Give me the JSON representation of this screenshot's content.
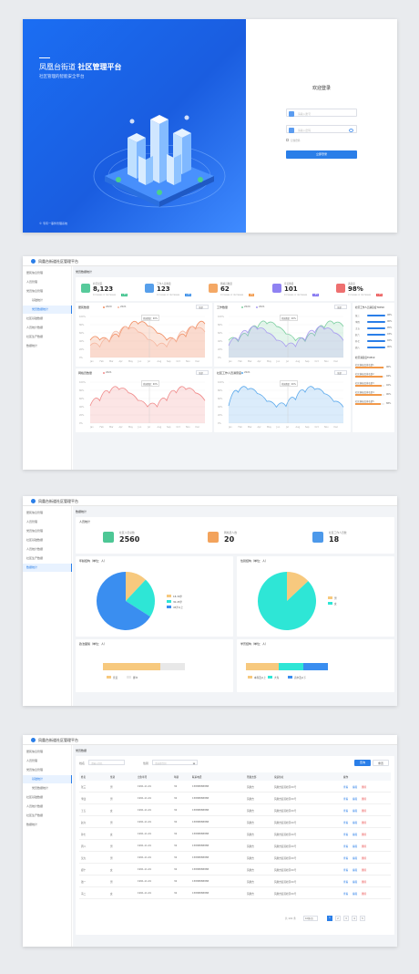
{
  "login": {
    "title_main": "凤凰台街道",
    "title_bold": "社区管理平台",
    "subtitle": "社区管理的智能安全平台",
    "footer": "© 专有一事件管理系统",
    "form_title": "欢迎登录",
    "username_placeholder": "请输入账号",
    "password_placeholder": "请输入密码",
    "remember_label": "记住密码",
    "submit_label": "立即登录"
  },
  "app_title": "凤凰台街道社区管理平台",
  "sidebar": {
    "items": [
      {
        "label": "居民信息管理"
      },
      {
        "label": "人员管理"
      },
      {
        "label": "党员信息管理"
      },
      {
        "label": "基础统计"
      },
      {
        "label": "党员数据统计"
      },
      {
        "label": "社区基础数据"
      },
      {
        "label": "人员统计数据"
      },
      {
        "label": "社区生产数据"
      },
      {
        "label": "数据统计"
      }
    ]
  },
  "dashboard": {
    "breadcrumb": "党员数据统计",
    "stats": [
      {
        "label": "社区居民",
        "value": "8,123",
        "sub": "Increases or decreases",
        "change": "+5%",
        "color": "#3ac18a"
      },
      {
        "label": "工作人员数量",
        "value": "123",
        "sub": "Increases or decreases",
        "change": "+2%",
        "color": "#3a8ee8"
      },
      {
        "label": "网格员数量",
        "value": "62",
        "sub": "Increases or decreases",
        "change": "-1%",
        "color": "#f2994a"
      },
      {
        "label": "党员数量",
        "value": "101",
        "sub": "Increases or decreases",
        "change": "+8%",
        "color": "#7b6cf0"
      },
      {
        "label": "满意度",
        "value": "98%",
        "sub": "Increases or decreases",
        "change": "+1%",
        "color": "#eb5757"
      }
    ],
    "charts": [
      {
        "title": "居民数量",
        "legend": [
          "2020",
          "2021"
        ],
        "select": "全部",
        "tooltip": "党员数量：90%",
        "colors": [
          "#f08a5d",
          "#f5b7a0"
        ]
      },
      {
        "title": "工作数量",
        "legend": [
          "2020",
          "2021"
        ],
        "select": "全部",
        "tooltip": "党员数量：90%",
        "colors": [
          "#7fd0a2",
          "#a99cf0"
        ]
      },
      {
        "title": "网格员数量",
        "legend": [
          "2021"
        ],
        "select": "全部",
        "tooltip": "党员数量：90%",
        "colors": [
          "#f08a8a"
        ]
      },
      {
        "title": "社区工作人员满意度",
        "legend": [
          "2021"
        ],
        "select": "全部",
        "tooltip": "党员数量：90%",
        "colors": [
          "#5aa9ec"
        ]
      }
    ],
    "months": [
      "Jan",
      "Feb",
      "Mar",
      "Apr",
      "May",
      "Jun",
      "Jul",
      "Aug",
      "Sep",
      "Oct",
      "Nov",
      "Dec"
    ],
    "yticks": [
      "100%",
      "80%",
      "60%",
      "40%",
      "20%",
      "0%"
    ],
    "rank_title": "社区工作人员满意度TOP10",
    "rank": [
      {
        "name": "张三",
        "value": "98%"
      },
      {
        "name": "李四",
        "value": "96%"
      },
      {
        "name": "王五",
        "value": "95%"
      },
      {
        "name": "赵六",
        "value": "93%"
      },
      {
        "name": "孙七",
        "value": "92%"
      },
      {
        "name": "周八",
        "value": "90%"
      }
    ],
    "progress_title": "社区满意度TOP10",
    "progress": [
      {
        "name": "社区满意度排名第1",
        "value": "96%",
        "pct": 0.96
      },
      {
        "name": "社区满意度排名第2",
        "value": "94%",
        "pct": 0.94
      },
      {
        "name": "社区满意度排名第3",
        "value": "92%",
        "pct": 0.92
      },
      {
        "name": "社区满意度排名第4",
        "value": "90%",
        "pct": 0.9
      },
      {
        "name": "社区满意度排名第5",
        "value": "88%",
        "pct": 0.88
      }
    ]
  },
  "stats_page": {
    "breadcrumb": "数据统计",
    "section_title": "人员统计",
    "cards": [
      {
        "label": "社区人员总数",
        "value": "2560",
        "color": "#3ac18a"
      },
      {
        "label": "网格员人数",
        "value": "20",
        "color": "#f2994a"
      },
      {
        "label": "社区工作人员数",
        "value": "18",
        "color": "#3a8ee8"
      }
    ],
    "pie1": {
      "title": "年龄结构（单位：人）",
      "legend": [
        "18-30岁",
        "30-45岁",
        "45岁以上"
      ],
      "colors": [
        "#f7c97e",
        "#2ee6d6",
        "#3a8ef0"
      ]
    },
    "pie2": {
      "title": "性别结构（单位：人）",
      "legend": [
        "男",
        "女"
      ],
      "colors": [
        "#f7c97e",
        "#2ee6d6"
      ]
    },
    "bar1": {
      "title": "政治面貌（单位：人）",
      "legend": [
        "党员",
        "群众"
      ],
      "colors": [
        "#f7c97e",
        "#e8e8e8"
      ]
    },
    "bar2": {
      "title": "学历结构（单位：人）",
      "legend": [
        "本科及以上",
        "大专",
        "高中及以下"
      ],
      "colors": [
        "#f7c97e",
        "#2ee6d6",
        "#3a8ef0"
      ]
    }
  },
  "table_page": {
    "breadcrumb": "党员数据",
    "filter1_label": "姓名",
    "filter1_placeholder": "请输入姓名",
    "filter2_label": "性别",
    "filter2_placeholder": "请选择性别",
    "search_btn": "查询",
    "reset_btn": "重置",
    "columns": [
      "姓名",
      "性别",
      "出生年月",
      "年龄",
      "联系电话",
      "所属支部",
      "家庭住址",
      "操作"
    ],
    "rows": [
      [
        "张三",
        "男",
        "1991-11-01",
        "32",
        "15888888888",
        "凤凰台",
        "凤凰台街道社区XX号"
      ],
      [
        "李四",
        "男",
        "1991-11-01",
        "32",
        "15888888888",
        "凤凰台",
        "凤凰台街道社区XX号"
      ],
      [
        "王五",
        "女",
        "1991-11-01",
        "32",
        "15888888888",
        "凤凰台",
        "凤凰台街道社区XX号"
      ],
      [
        "赵六",
        "男",
        "1991-11-01",
        "32",
        "15888888888",
        "凤凰台",
        "凤凰台街道社区XX号"
      ],
      [
        "孙七",
        "女",
        "1991-11-01",
        "32",
        "15888888888",
        "凤凰台",
        "凤凰台街道社区XX号"
      ],
      [
        "周八",
        "男",
        "1991-11-01",
        "32",
        "15888888888",
        "凤凰台",
        "凤凰台街道社区XX号"
      ],
      [
        "吴九",
        "男",
        "1991-11-01",
        "32",
        "15888888888",
        "凤凰台",
        "凤凰台街道社区XX号"
      ],
      [
        "郑十",
        "女",
        "1991-11-01",
        "32",
        "15888888888",
        "凤凰台",
        "凤凰台街道社区XX号"
      ],
      [
        "钱一",
        "男",
        "1991-11-01",
        "32",
        "15888888888",
        "凤凰台",
        "凤凰台街道社区XX号"
      ],
      [
        "冯二",
        "女",
        "1991-11-01",
        "32",
        "15888888888",
        "凤凰台",
        "凤凰台街道社区XX号"
      ]
    ],
    "actions": [
      "查看",
      "编辑",
      "删除"
    ],
    "pagination": {
      "total": "共 101 条",
      "size": "10条/页",
      "pages": [
        "1",
        "2",
        "3",
        "4",
        "5"
      ]
    }
  }
}
